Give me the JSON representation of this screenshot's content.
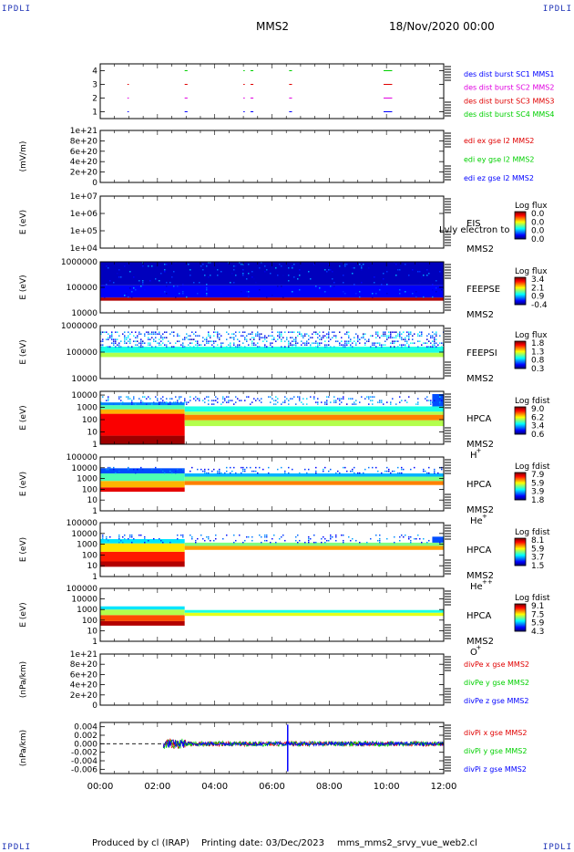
{
  "header": {
    "corner_labels": [
      "IPDLI",
      "IPDLI",
      "IPDLI",
      "IPDLI"
    ],
    "spacecraft": "MMS2",
    "date_time": "18/Nov/2020 00:00"
  },
  "footer": {
    "produced_by": "Produced by cl (IRAP)",
    "printing_date": "Printing date: 03/Dec/2023",
    "filename": "mms_mms2_srvy_vue_web2.cl"
  },
  "time_axis": {
    "ticks": [
      "00:00",
      "02:00",
      "04:00",
      "06:00",
      "08:00",
      "10:00",
      "12:00"
    ],
    "range_hours": [
      0,
      12
    ]
  },
  "colors": {
    "blue": "#0000ff",
    "magenta": "#e000e0",
    "red": "#e00000",
    "green": "#00d000",
    "axis": "#000000"
  },
  "chart_data": [
    {
      "type": "scatter",
      "id": "burst",
      "ylabel": "",
      "yticks": [
        "1",
        "2",
        "3",
        "4"
      ],
      "ylim": [
        0.5,
        4.5
      ],
      "legend": [
        {
          "label": "des dist burst SC1 MMS1",
          "color": "#0000ff"
        },
        {
          "label": "des dist burst SC2 MMS2",
          "color": "#e000e0"
        },
        {
          "label": "des dist burst SC3 MMS3",
          "color": "#e00000"
        },
        {
          "label": "des dist burst SC4 MMS4",
          "color": "#00d000"
        }
      ],
      "series": [
        {
          "sc": 1,
          "color": "#0000ff",
          "intervals": [
            [
              0.95,
              1.0
            ],
            [
              2.95,
              3.05
            ],
            [
              5.0,
              5.05
            ],
            [
              5.25,
              5.35
            ],
            [
              6.6,
              6.7
            ],
            [
              9.9,
              10.2
            ]
          ]
        },
        {
          "sc": 2,
          "color": "#e000e0",
          "intervals": [
            [
              0.95,
              1.0
            ],
            [
              2.95,
              3.05
            ],
            [
              5.0,
              5.05
            ],
            [
              5.25,
              5.35
            ],
            [
              6.6,
              6.7
            ],
            [
              9.9,
              10.2
            ]
          ]
        },
        {
          "sc": 3,
          "color": "#e00000",
          "intervals": [
            [
              0.95,
              1.0
            ],
            [
              2.95,
              3.05
            ],
            [
              5.0,
              5.05
            ],
            [
              5.25,
              5.35
            ],
            [
              6.6,
              6.7
            ],
            [
              9.9,
              10.2
            ]
          ]
        },
        {
          "sc": 4,
          "color": "#00d000",
          "intervals": [
            [
              2.95,
              3.05
            ],
            [
              5.0,
              5.05
            ],
            [
              5.25,
              5.35
            ],
            [
              6.6,
              6.7
            ],
            [
              9.9,
              10.2
            ]
          ]
        }
      ]
    },
    {
      "type": "line",
      "id": "edi",
      "ylabel": "(mV/m)",
      "yticks": [
        "0",
        "2e+20",
        "4e+20",
        "6e+20",
        "8e+20",
        "1e+21"
      ],
      "ylim": [
        0,
        1e+21
      ],
      "legend": [
        {
          "label": "edi ex gse l2 MMS2",
          "color": "#e00000"
        },
        {
          "label": "edi ey gse l2 MMS2",
          "color": "#00d000"
        },
        {
          "label": "edi ez gse l2 MMS2",
          "color": "#0000ff"
        }
      ],
      "zero_line": true
    },
    {
      "type": "heatmap",
      "id": "eis",
      "ylabel": "E (eV)",
      "yticks": [
        "1e+04",
        "1e+05",
        "1e+06",
        "1e+07"
      ],
      "ylim": [
        10000,
        10000000
      ],
      "instrument": "EIS",
      "overlay_text": "Lvly electron to",
      "spacecraft": "MMS2",
      "colorbar": {
        "title": "Log flux",
        "ticks": [
          "0.0",
          "0.0",
          "0.0",
          "0.0"
        ]
      },
      "bands": []
    },
    {
      "type": "heatmap",
      "id": "feepse",
      "ylabel": "E (eV)",
      "yticks": [
        "10000",
        "100000",
        "1000000"
      ],
      "ylim": [
        10000,
        1000000
      ],
      "instrument": "FEEPSE",
      "spacecraft": "MMS2",
      "colorbar": {
        "title": "Log flux",
        "ticks": [
          "3.4",
          "2.1",
          "0.9",
          "-0.4"
        ]
      },
      "bands": [
        {
          "t": [
            0,
            12
          ],
          "e": [
            30000,
            40000
          ],
          "level": 0.95
        },
        {
          "t": [
            0,
            12
          ],
          "e": [
            40000,
            120000
          ],
          "level": 0.12
        },
        {
          "t": [
            0,
            12
          ],
          "e": [
            120000,
            1000000
          ],
          "level": 0.06
        }
      ],
      "speckle": {
        "e": [
          40000,
          1000000
        ],
        "level": [
          0.05,
          0.3
        ],
        "density": 0.06
      }
    },
    {
      "type": "heatmap",
      "id": "feepsi",
      "ylabel": "E (eV)",
      "yticks": [
        "10000",
        "100000",
        "1000000"
      ],
      "ylim": [
        10000,
        1000000
      ],
      "instrument": "FEEPSI",
      "spacecraft": "MMS2",
      "colorbar": {
        "title": "Log flux",
        "ticks": [
          "1.8",
          "1.3",
          "0.8",
          "0.3"
        ]
      },
      "bands": [
        {
          "t": [
            0,
            12
          ],
          "e": [
            65000,
            95000
          ],
          "level": 0.55
        },
        {
          "t": [
            0,
            12
          ],
          "e": [
            95000,
            160000
          ],
          "level": 0.4
        }
      ],
      "speckle": {
        "e": [
          160000,
          600000
        ],
        "level": [
          0.05,
          0.4
        ],
        "density": 0.35
      }
    },
    {
      "type": "heatmap",
      "id": "hpca_h",
      "ylabel": "E (eV)",
      "yticks": [
        "1",
        "10",
        "100",
        "1000",
        "10000"
      ],
      "ylim": [
        1,
        20000
      ],
      "instrument": "HPCA",
      "spacecraft": "MMS2",
      "species": "H",
      "species_sup": "+",
      "colorbar": {
        "title": "Log fdist",
        "ticks": [
          "9.0",
          "6.2",
          "3.4",
          "0.6"
        ]
      },
      "bands": [
        {
          "t": [
            0,
            2.95
          ],
          "e": [
            1,
            5
          ],
          "level": 0.97
        },
        {
          "t": [
            0,
            2.95
          ],
          "e": [
            5,
            300
          ],
          "level": 0.88
        },
        {
          "t": [
            0,
            2.95
          ],
          "e": [
            300,
            700
          ],
          "level": 0.7
        },
        {
          "t": [
            0,
            2.95
          ],
          "e": [
            700,
            1500
          ],
          "level": 0.45
        },
        {
          "t": [
            0,
            2.95
          ],
          "e": [
            1500,
            2500
          ],
          "level": 0.25
        },
        {
          "t": [
            2.95,
            12
          ],
          "e": [
            30,
            90
          ],
          "level": 0.55
        },
        {
          "t": [
            2.95,
            12
          ],
          "e": [
            90,
            250
          ],
          "level": 0.75
        },
        {
          "t": [
            2.95,
            12
          ],
          "e": [
            250,
            450
          ],
          "level": 0.55
        },
        {
          "t": [
            2.95,
            12
          ],
          "e": [
            450,
            1200
          ],
          "level": 0.4
        },
        {
          "t": [
            11.6,
            12
          ],
          "e": [
            1200,
            12000
          ],
          "level": 0.2
        }
      ],
      "speckle": {
        "e": [
          1500,
          8000
        ],
        "level": [
          0.1,
          0.35
        ],
        "density": 0.25
      }
    },
    {
      "type": "heatmap",
      "id": "hpca_he",
      "ylabel": "E (eV)",
      "yticks": [
        "1",
        "10",
        "100",
        "1000",
        "10000",
        "100000"
      ],
      "ylim": [
        1,
        100000
      ],
      "instrument": "HPCA",
      "spacecraft": "MMS2",
      "species": "He",
      "species_sup": "+",
      "colorbar": {
        "title": "Log fdist",
        "ticks": [
          "7.9",
          "5.9",
          "3.9",
          "1.8"
        ]
      },
      "bands": [
        {
          "t": [
            0,
            2.95
          ],
          "e": [
            60,
            150
          ],
          "level": 0.9
        },
        {
          "t": [
            0,
            2.95
          ],
          "e": [
            150,
            600
          ],
          "level": 0.7
        },
        {
          "t": [
            0,
            2.95
          ],
          "e": [
            600,
            3000
          ],
          "level": 0.45
        },
        {
          "t": [
            0,
            2.95
          ],
          "e": [
            3000,
            9000
          ],
          "level": 0.2
        },
        {
          "t": [
            2.95,
            12
          ],
          "e": [
            250,
            600
          ],
          "level": 0.75
        },
        {
          "t": [
            2.95,
            12
          ],
          "e": [
            600,
            1500
          ],
          "level": 0.5
        },
        {
          "t": [
            2.95,
            12
          ],
          "e": [
            1500,
            3000
          ],
          "level": 0.3
        }
      ],
      "speckle": {
        "e": [
          3000,
          12000
        ],
        "level": [
          0.1,
          0.3
        ],
        "density": 0.2
      }
    },
    {
      "type": "heatmap",
      "id": "hpca_hepp",
      "ylabel": "E (eV)",
      "yticks": [
        "1",
        "10",
        "100",
        "1000",
        "10000",
        "100000"
      ],
      "ylim": [
        1,
        100000
      ],
      "instrument": "HPCA",
      "spacecraft": "MMS2",
      "species": "He",
      "species_sup": "++",
      "colorbar": {
        "title": "Log fdist",
        "ticks": [
          "8.1",
          "5.9",
          "3.7",
          "1.5"
        ]
      },
      "bands": [
        {
          "t": [
            0,
            2.95
          ],
          "e": [
            8,
            25
          ],
          "level": 0.95
        },
        {
          "t": [
            0,
            2.95
          ],
          "e": [
            25,
            200
          ],
          "level": 0.85
        },
        {
          "t": [
            0,
            2.95
          ],
          "e": [
            200,
            1200
          ],
          "level": 0.65
        },
        {
          "t": [
            0,
            2.95
          ],
          "e": [
            1200,
            3000
          ],
          "level": 0.35
        },
        {
          "t": [
            2.95,
            12
          ],
          "e": [
            300,
            700
          ],
          "level": 0.72
        },
        {
          "t": [
            2.95,
            12
          ],
          "e": [
            700,
            1400
          ],
          "level": 0.5
        },
        {
          "t": [
            11.6,
            12
          ],
          "e": [
            1400,
            5000
          ],
          "level": 0.2
        }
      ],
      "speckle": {
        "e": [
          1500,
          8000
        ],
        "level": [
          0.1,
          0.3
        ],
        "density": 0.15
      }
    },
    {
      "type": "heatmap",
      "id": "hpca_o",
      "ylabel": "E (eV)",
      "yticks": [
        "1",
        "10",
        "100",
        "1000",
        "10000",
        "100000"
      ],
      "ylim": [
        1,
        100000
      ],
      "instrument": "HPCA",
      "spacecraft": "MMS2",
      "species": "O",
      "species_sup": "+",
      "colorbar": {
        "title": "Log fdist",
        "ticks": [
          "9.1",
          "7.5",
          "5.9",
          "4.3"
        ]
      },
      "bands": [
        {
          "t": [
            0,
            2.95
          ],
          "e": [
            30,
            80
          ],
          "level": 0.95
        },
        {
          "t": [
            0,
            2.95
          ],
          "e": [
            80,
            300
          ],
          "level": 0.8
        },
        {
          "t": [
            0,
            2.95
          ],
          "e": [
            300,
            1000
          ],
          "level": 0.55
        },
        {
          "t": [
            0,
            2.95
          ],
          "e": [
            1000,
            2000
          ],
          "level": 0.35
        },
        {
          "t": [
            2.95,
            12
          ],
          "e": [
            250,
            500
          ],
          "level": 0.6
        },
        {
          "t": [
            2.95,
            12
          ],
          "e": [
            500,
            900
          ],
          "level": 0.4
        }
      ]
    },
    {
      "type": "line",
      "id": "divpe",
      "ylabel": "(nPa/km)",
      "yticks": [
        "0",
        "2e+20",
        "4e+20",
        "6e+20",
        "8e+20",
        "1e+21"
      ],
      "ylim": [
        0,
        1e+21
      ],
      "legend": [
        {
          "label": "divPe x gse MMS2",
          "color": "#e00000"
        },
        {
          "label": "divPe y gse MMS2",
          "color": "#00d000"
        },
        {
          "label": "divPe z gse MMS2",
          "color": "#0000ff"
        }
      ],
      "zero_line": true
    },
    {
      "type": "line",
      "id": "divpi",
      "ylabel": "(nPa/km)",
      "yticks": [
        "-0.006",
        "-0.004",
        "-0.002",
        "0.000",
        "0.002",
        "0.004"
      ],
      "ylim": [
        -0.007,
        0.005
      ],
      "legend": [
        {
          "label": "divPi x gse MMS2",
          "color": "#e00000"
        },
        {
          "label": "divPi y gse MMS2",
          "color": "#00d000"
        },
        {
          "label": "divPi z gse MMS2",
          "color": "#0000ff"
        }
      ],
      "zero_line": true,
      "noise": {
        "t": [
          2.2,
          12
        ],
        "amp_early": 0.0012,
        "amp_late": 0.0006,
        "burst_t": [
          2.2,
          3.0
        ]
      },
      "spike": {
        "t": 6.55,
        "min": -0.0065,
        "max": 0.0045
      }
    }
  ]
}
